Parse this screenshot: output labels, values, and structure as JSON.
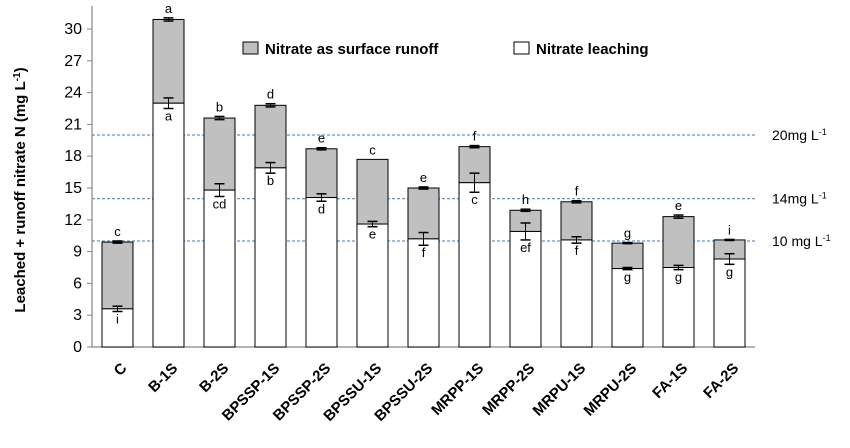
{
  "chart_data": {
    "type": "bar",
    "stacked": true,
    "ylabel": "Leached + runoff nitrate N (mg L",
    "ylabel_sup": "-1",
    "ylabel_close": ")",
    "ylim": [
      0,
      32
    ],
    "yticks": [
      0,
      3,
      6,
      9,
      12,
      15,
      18,
      21,
      24,
      27,
      30
    ],
    "grid": false,
    "legend_position": "top-right",
    "categories": [
      "C",
      "B-1S",
      "B-2S",
      "BPSSP-1S",
      "BPSSP-2S",
      "BPSSU-1S",
      "BPSSU-2S",
      "MRPP-1S",
      "MRPP-2S",
      "MRPU-1S",
      "MRPU-2S",
      "FA-1S",
      "FA-2S"
    ],
    "series": [
      {
        "name": "Nitrate leaching",
        "color": "#ffffff",
        "values": [
          3.6,
          23.0,
          14.8,
          16.9,
          14.1,
          11.6,
          10.2,
          15.5,
          10.9,
          10.1,
          7.4,
          7.5,
          8.3
        ],
        "errors": [
          0.25,
          0.5,
          0.6,
          0.5,
          0.35,
          0.25,
          0.6,
          0.9,
          0.8,
          0.3,
          0.1,
          0.2,
          0.5
        ],
        "sig_labels": [
          "i",
          "a",
          "cd",
          "b",
          "d",
          "e",
          "f",
          "c",
          "ef",
          "f",
          "g",
          "g",
          "g"
        ]
      },
      {
        "name": "Nitrate as surface runoff",
        "color": "#c0c0c0",
        "totals": [
          9.9,
          30.9,
          21.6,
          22.8,
          18.7,
          17.7,
          15.0,
          18.9,
          12.9,
          13.7,
          9.8,
          12.3,
          10.1
        ],
        "errors": [
          0.1,
          0.15,
          0.15,
          0.15,
          0.1,
          0.0,
          0.1,
          0.1,
          0.1,
          0.1,
          0.05,
          0.15,
          0.05
        ],
        "sig_labels": [
          "c",
          "a",
          "b",
          "d",
          "e",
          "c",
          "e",
          "f",
          "h",
          "f",
          "g",
          "e",
          "i"
        ]
      }
    ],
    "reference_lines": [
      {
        "value": 20,
        "label": "20mg L",
        "sup": "-1"
      },
      {
        "value": 14,
        "label": "14mg L",
        "sup": "-1"
      },
      {
        "value": 10,
        "label": "10 mg L",
        "sup": "-1"
      }
    ],
    "ref_line_color": "#5b9bd5"
  }
}
